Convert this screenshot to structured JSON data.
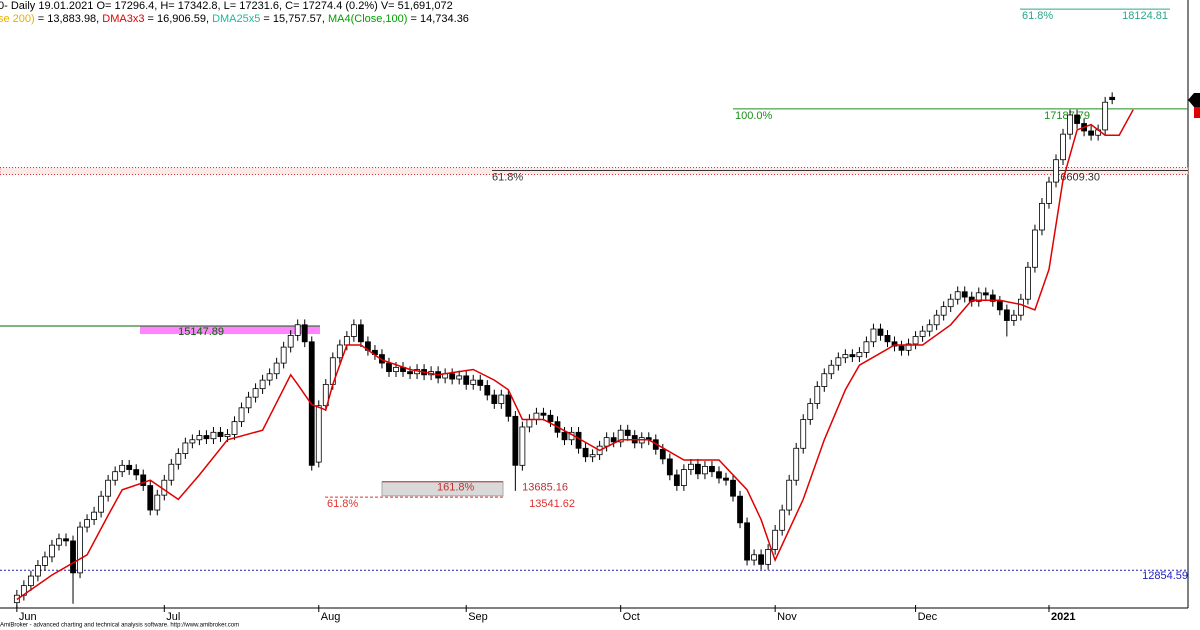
{
  "chart_data": {
    "type": "candlestick",
    "header": {
      "line1": "0- Daily 19.01.2021 O= 17296.4, H= 17342.8, L= 17231.6, C= 17274.4 (0.2%) V= 51,691,072",
      "line2": [
        {
          "text": "se 200)",
          "color": "#e8b000"
        },
        {
          "text": " = 13,883.98, ",
          "color": "#000000"
        },
        {
          "text": "DMA3x3",
          "color": "#e00000"
        },
        {
          "text": " = 16,906.59, ",
          "color": "#000000"
        },
        {
          "text": "DMA25x5",
          "color": "#20b8a0"
        },
        {
          "text": " = 15,757.57, ",
          "color": "#000000"
        },
        {
          "text": "MA4(Close,100)",
          "color": "#00a000"
        },
        {
          "text": " = 14,734.36",
          "color": "#000000"
        }
      ]
    },
    "xlim": [
      -2.4,
      166.8
    ],
    "ylim": [
      12500,
      18210
    ],
    "xticks": [
      {
        "value": 0,
        "label": "Jun"
      },
      {
        "value": 21,
        "label": "Jul"
      },
      {
        "value": 43,
        "label": "Aug"
      },
      {
        "value": 64,
        "label": "Sep"
      },
      {
        "value": 86,
        "label": "Oct"
      },
      {
        "value": 108,
        "label": "Nov"
      },
      {
        "value": 128,
        "label": "Dec"
      },
      {
        "value": 147,
        "label": "2021"
      }
    ],
    "up_color": "#ffffff",
    "down_color": "#000000",
    "candles": {
      "open": [
        12550,
        12620,
        12710,
        12800,
        12900,
        12980,
        13090,
        13150,
        13130,
        12830,
        13260,
        13330,
        13400,
        13550,
        13700,
        13780,
        13840,
        13800,
        13750,
        13650,
        13420,
        13560,
        13700,
        13850,
        13950,
        14050,
        14080,
        14120,
        14090,
        14150,
        14110,
        14130,
        14250,
        14380,
        14480,
        14560,
        14640,
        14700,
        14800,
        14950,
        15060,
        15160,
        15000,
        13870,
        14400,
        14600,
        14850,
        14970,
        15050,
        15160,
        15000,
        14920,
        14880,
        14800,
        14720,
        14760,
        14720,
        14700,
        14740,
        14690,
        14720,
        14660,
        14700,
        14650,
        14680,
        14600,
        14640,
        14590,
        14500,
        14420,
        14500,
        14300,
        13840,
        14200,
        14270,
        14330,
        14310,
        14250,
        14150,
        14080,
        14150,
        14000,
        13920,
        13940,
        14020,
        14100,
        14060,
        14170,
        14120,
        14050,
        14100,
        14080,
        13990,
        13900,
        13750,
        13650,
        13800,
        13850,
        13760,
        13830,
        13780,
        13720,
        13700,
        13550,
        13300,
        12950,
        13000,
        12910,
        13050,
        13230,
        13420,
        13700,
        14000,
        14270,
        14420,
        14580,
        14700,
        14780,
        14850,
        14880,
        14860,
        14900,
        15000,
        15120,
        15060,
        15000,
        14960,
        14920,
        14980,
        15050,
        15100,
        15160,
        15250,
        15330,
        15400,
        15470,
        15420,
        15380,
        15460,
        15440,
        15380,
        15300,
        15200,
        15250,
        15400,
        15700,
        16050,
        16300,
        16500,
        16710,
        16950,
        17130,
        17050,
        16980,
        16940,
        16990,
        17296.4
      ],
      "high": [
        12670,
        12760,
        12850,
        12950,
        13030,
        13140,
        13200,
        13200,
        13180,
        13310,
        13380,
        13450,
        13600,
        13750,
        13830,
        13890,
        13890,
        13850,
        13800,
        13700,
        13610,
        13750,
        13900,
        14000,
        14100,
        14130,
        14170,
        14170,
        14200,
        14200,
        14180,
        14300,
        14430,
        14530,
        14610,
        14690,
        14750,
        14850,
        15000,
        15110,
        15210,
        15210,
        15050,
        14450,
        14650,
        14900,
        15020,
        15100,
        15210,
        15210,
        15050,
        14970,
        14930,
        14850,
        14810,
        14810,
        14770,
        14790,
        14790,
        14770,
        14770,
        14750,
        14750,
        14730,
        14730,
        14690,
        14690,
        14640,
        14550,
        14550,
        14550,
        14350,
        14250,
        14320,
        14380,
        14380,
        14360,
        14300,
        14200,
        14200,
        14200,
        14050,
        13990,
        14070,
        14150,
        14150,
        14220,
        14220,
        14170,
        14150,
        14150,
        14130,
        14040,
        13950,
        13800,
        13850,
        13900,
        13900,
        13880,
        13880,
        13830,
        13770,
        13750,
        13600,
        13350,
        13050,
        13050,
        13100,
        13280,
        13470,
        13750,
        14050,
        14320,
        14470,
        14630,
        14750,
        14830,
        14900,
        14930,
        14930,
        14950,
        15050,
        15170,
        15170,
        15110,
        15050,
        15010,
        15030,
        15100,
        15150,
        15210,
        15300,
        15380,
        15450,
        15520,
        15520,
        15470,
        15510,
        15510,
        15490,
        15430,
        15350,
        15300,
        15450,
        15750,
        16100,
        16350,
        16550,
        16760,
        17000,
        17180,
        17180,
        17100,
        17030,
        17040,
        17300,
        17342.8
      ],
      "low": [
        12500,
        12570,
        12660,
        12750,
        12850,
        12930,
        13040,
        13080,
        12540,
        12780,
        13210,
        13280,
        13350,
        13500,
        13650,
        13730,
        13750,
        13700,
        13600,
        13370,
        13370,
        13510,
        13650,
        13800,
        13900,
        14000,
        14030,
        14040,
        14040,
        14060,
        14060,
        14080,
        14200,
        14330,
        14430,
        14510,
        14590,
        14650,
        14750,
        14900,
        15010,
        14950,
        13790,
        13820,
        14350,
        14550,
        14800,
        14920,
        15000,
        14950,
        14870,
        14830,
        14750,
        14670,
        14670,
        14670,
        14650,
        14650,
        14640,
        14640,
        14610,
        14610,
        14600,
        14600,
        14550,
        14550,
        14540,
        14450,
        14370,
        14370,
        14250,
        13600,
        13790,
        14150,
        14220,
        14260,
        14200,
        14100,
        14030,
        14030,
        13950,
        13870,
        13870,
        13890,
        13970,
        14010,
        14010,
        14070,
        14000,
        14000,
        14030,
        13940,
        13850,
        13700,
        13600,
        13600,
        13750,
        13710,
        13710,
        13730,
        13670,
        13650,
        13500,
        13250,
        12900,
        12900,
        12860,
        12860,
        13000,
        13180,
        13370,
        13650,
        13950,
        14220,
        14370,
        14530,
        14650,
        14730,
        14800,
        14810,
        14810,
        14850,
        14950,
        15010,
        14950,
        14910,
        14870,
        14870,
        14930,
        15000,
        15050,
        15110,
        15200,
        15280,
        15350,
        15370,
        15330,
        15330,
        15390,
        15330,
        15250,
        15050,
        15150,
        15200,
        15350,
        15650,
        16000,
        16250,
        16450,
        16660,
        16900,
        17000,
        16930,
        16890,
        16890,
        16940,
        17231.6
      ],
      "close": [
        12620,
        12710,
        12800,
        12900,
        12980,
        13090,
        13150,
        13130,
        12830,
        13260,
        13330,
        13400,
        13550,
        13700,
        13780,
        13840,
        13800,
        13750,
        13650,
        13420,
        13560,
        13700,
        13850,
        13950,
        14050,
        14080,
        14120,
        14090,
        14150,
        14110,
        14130,
        14250,
        14380,
        14480,
        14560,
        14640,
        14700,
        14800,
        14950,
        15060,
        15160,
        15000,
        13840,
        14400,
        14600,
        14850,
        14970,
        15050,
        15160,
        15000,
        14920,
        14880,
        14800,
        14720,
        14760,
        14720,
        14700,
        14740,
        14690,
        14720,
        14660,
        14700,
        14650,
        14680,
        14600,
        14640,
        14590,
        14500,
        14420,
        14500,
        14300,
        13840,
        14200,
        14270,
        14330,
        14310,
        14250,
        14150,
        14080,
        14150,
        14000,
        13920,
        13940,
        14020,
        14100,
        14060,
        14170,
        14120,
        14050,
        14100,
        14080,
        13990,
        13900,
        13750,
        13650,
        13800,
        13850,
        13760,
        13830,
        13780,
        13720,
        13700,
        13550,
        13300,
        12950,
        13000,
        12910,
        13050,
        13230,
        13420,
        13700,
        14000,
        14270,
        14420,
        14580,
        14700,
        14780,
        14850,
        14880,
        14860,
        14900,
        15000,
        15120,
        15060,
        15000,
        14960,
        14920,
        14980,
        15050,
        15100,
        15160,
        15250,
        15330,
        15400,
        15470,
        15420,
        15380,
        15460,
        15440,
        15380,
        15300,
        15200,
        15250,
        15400,
        15700,
        16050,
        16300,
        16500,
        16710,
        16950,
        17130,
        17050,
        16980,
        16940,
        16990,
        17250,
        17274.4
      ]
    },
    "lines": [
      {
        "name": "DMA3x3",
        "color": "#e00000",
        "x": [
          0,
          5,
          10,
          13,
          15,
          19,
          23,
          26,
          30,
          35,
          39,
          40,
          42,
          44,
          45,
          47,
          49,
          52,
          56,
          60,
          65,
          68,
          70,
          72,
          75,
          79,
          83,
          86,
          90,
          95,
          100,
          104,
          106,
          108,
          112,
          115,
          118,
          120,
          125,
          129,
          133,
          136,
          140,
          143,
          145,
          147,
          149,
          151,
          153,
          155,
          157,
          159
        ],
        "values": [
          12580,
          12810,
          13000,
          13370,
          13610,
          13700,
          13520,
          13750,
          14080,
          14170,
          14690,
          14600,
          14410,
          14360,
          14600,
          14970,
          14970,
          14830,
          14740,
          14690,
          14740,
          14640,
          14550,
          14270,
          14270,
          14130,
          13980,
          14080,
          14080,
          13890,
          13890,
          13610,
          13330,
          12950,
          13520,
          14080,
          14550,
          14780,
          14970,
          14970,
          15160,
          15390,
          15390,
          15350,
          15300,
          15680,
          16520,
          16990,
          17040,
          16940,
          16940,
          17180
        ]
      }
    ],
    "levels": [
      {
        "value": 18124.81,
        "ratio": "61.8%",
        "color": "#2aa68a"
      },
      {
        "value": 17187.79,
        "ratio": "100.0%",
        "color": "#1a8f1a"
      },
      {
        "value": 16609.3,
        "value_label": "16609.30",
        "ratio": "61.8%",
        "color": "#333333"
      },
      {
        "value": 15147.89,
        "color": "#006400"
      },
      {
        "value": 13685.16,
        "ratio": "161.8%",
        "color": "#c03030"
      },
      {
        "value": 13541.62,
        "ratio": "61.8%",
        "color": "#e03030"
      },
      {
        "value": 12854.59,
        "color": "#2020c0"
      }
    ],
    "footer": "AmiBroker - advanced charting and technical analysis software. http://www.amibroker.com"
  }
}
